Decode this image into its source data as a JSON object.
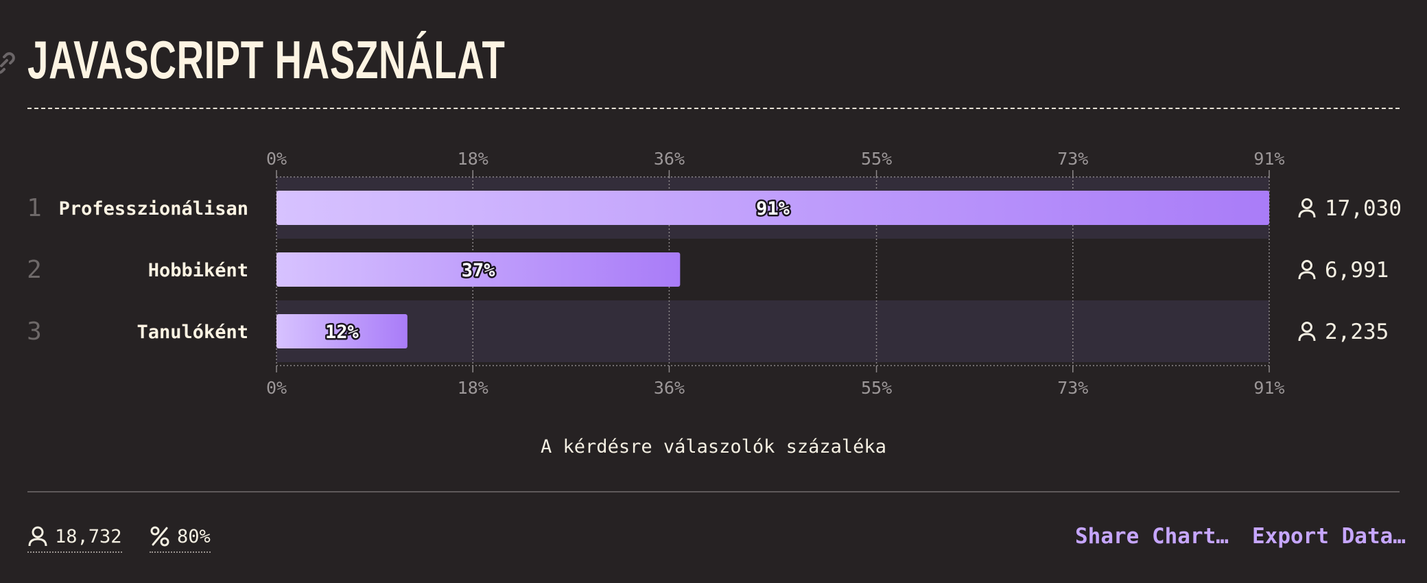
{
  "header": {
    "title": "JAVASCRIPT HASZNÁLAT",
    "link_icon": "link-icon"
  },
  "chart_data": {
    "type": "bar",
    "orientation": "horizontal",
    "categories": [
      "Professzionálisan",
      "Hobbiként",
      "Tanulóként"
    ],
    "ranks": [
      "1",
      "2",
      "3"
    ],
    "values": [
      91,
      37,
      12
    ],
    "value_labels": [
      "91%",
      "37%",
      "12%"
    ],
    "counts": [
      "17,030",
      "6,991",
      "2,235"
    ],
    "count_icon": "person-icon",
    "xlim": [
      0,
      91
    ],
    "ticks": [
      0,
      18,
      36,
      55,
      73,
      91
    ],
    "tick_labels": [
      "0%",
      "18%",
      "36%",
      "55%",
      "73%",
      "91%"
    ],
    "xlabel": "A kérdésre válaszolók százaléka",
    "grid": true,
    "bar_gradient": [
      "#d7c2ff",
      "#a97cf8"
    ]
  },
  "footer": {
    "respondents": "18,732",
    "completion": "80%",
    "share_label": "Share Chart…",
    "export_label": "Export Data…"
  },
  "colors": {
    "background": "#262223",
    "accent": "#c6a6ff",
    "text": "#f4efe2"
  }
}
